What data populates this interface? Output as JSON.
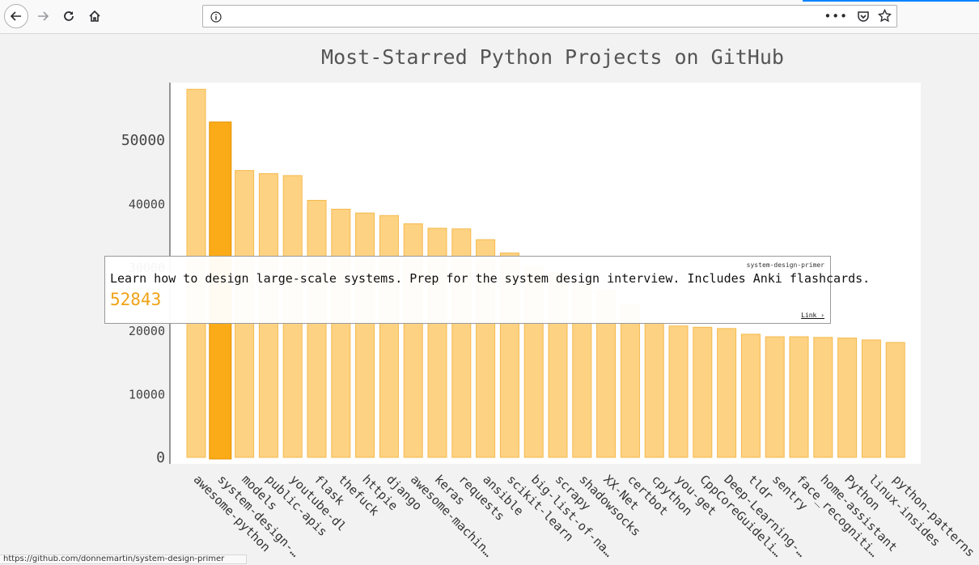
{
  "browser": {
    "url_value": "",
    "status_text": "https://github.com/donnemartin/system-design-primer"
  },
  "colors": {
    "bar_fill": "#fdd283",
    "bar_stroke": "#f5b94b",
    "bar_highlight": "#fbab18",
    "bar_highlight_stroke": "#e59200",
    "plot_bg": "#ffffff",
    "value_text": "#f0a215"
  },
  "chart_data": {
    "type": "bar",
    "title": "Most-Starred Python Projects on GitHub",
    "xlabel": "",
    "ylabel": "",
    "ylim": [
      0,
      58000
    ],
    "yticks": [
      0,
      10000,
      20000,
      30000,
      40000,
      50000
    ],
    "highlighted_index": 1,
    "categories": [
      "awesome-python",
      "system-design-…",
      "models",
      "public-apis",
      "youtube-dl",
      "flask",
      "thefuck",
      "httpie",
      "django",
      "awesome-machin…",
      "keras",
      "requests",
      "ansible",
      "scikit-learn",
      "big-list-of-na…",
      "scrapy",
      "shadowsocks",
      "XX-Net",
      "certbot",
      "cpython",
      "you-get",
      "CppCoreGuideli…",
      "Deep-Learning-…",
      "tldr",
      "sentry",
      "face_recogniti…",
      "home-assistant",
      "Python",
      "linux-insides",
      "python-patterns"
    ],
    "values": [
      58000,
      52843,
      45200,
      44700,
      44400,
      40500,
      39100,
      38500,
      38100,
      36800,
      36100,
      36000,
      34300,
      32200,
      30100,
      29000,
      27800,
      26300,
      24100,
      21200,
      20700,
      20500,
      20300,
      19400,
      19000,
      19000,
      18900,
      18800,
      18500,
      18100
    ]
  },
  "tooltip": {
    "name": "system-design-primer",
    "description": "Learn how to design large-scale systems. Prep for the system design interview. Includes Anki flashcards.",
    "value": "52843",
    "link_label": "Link ›"
  }
}
